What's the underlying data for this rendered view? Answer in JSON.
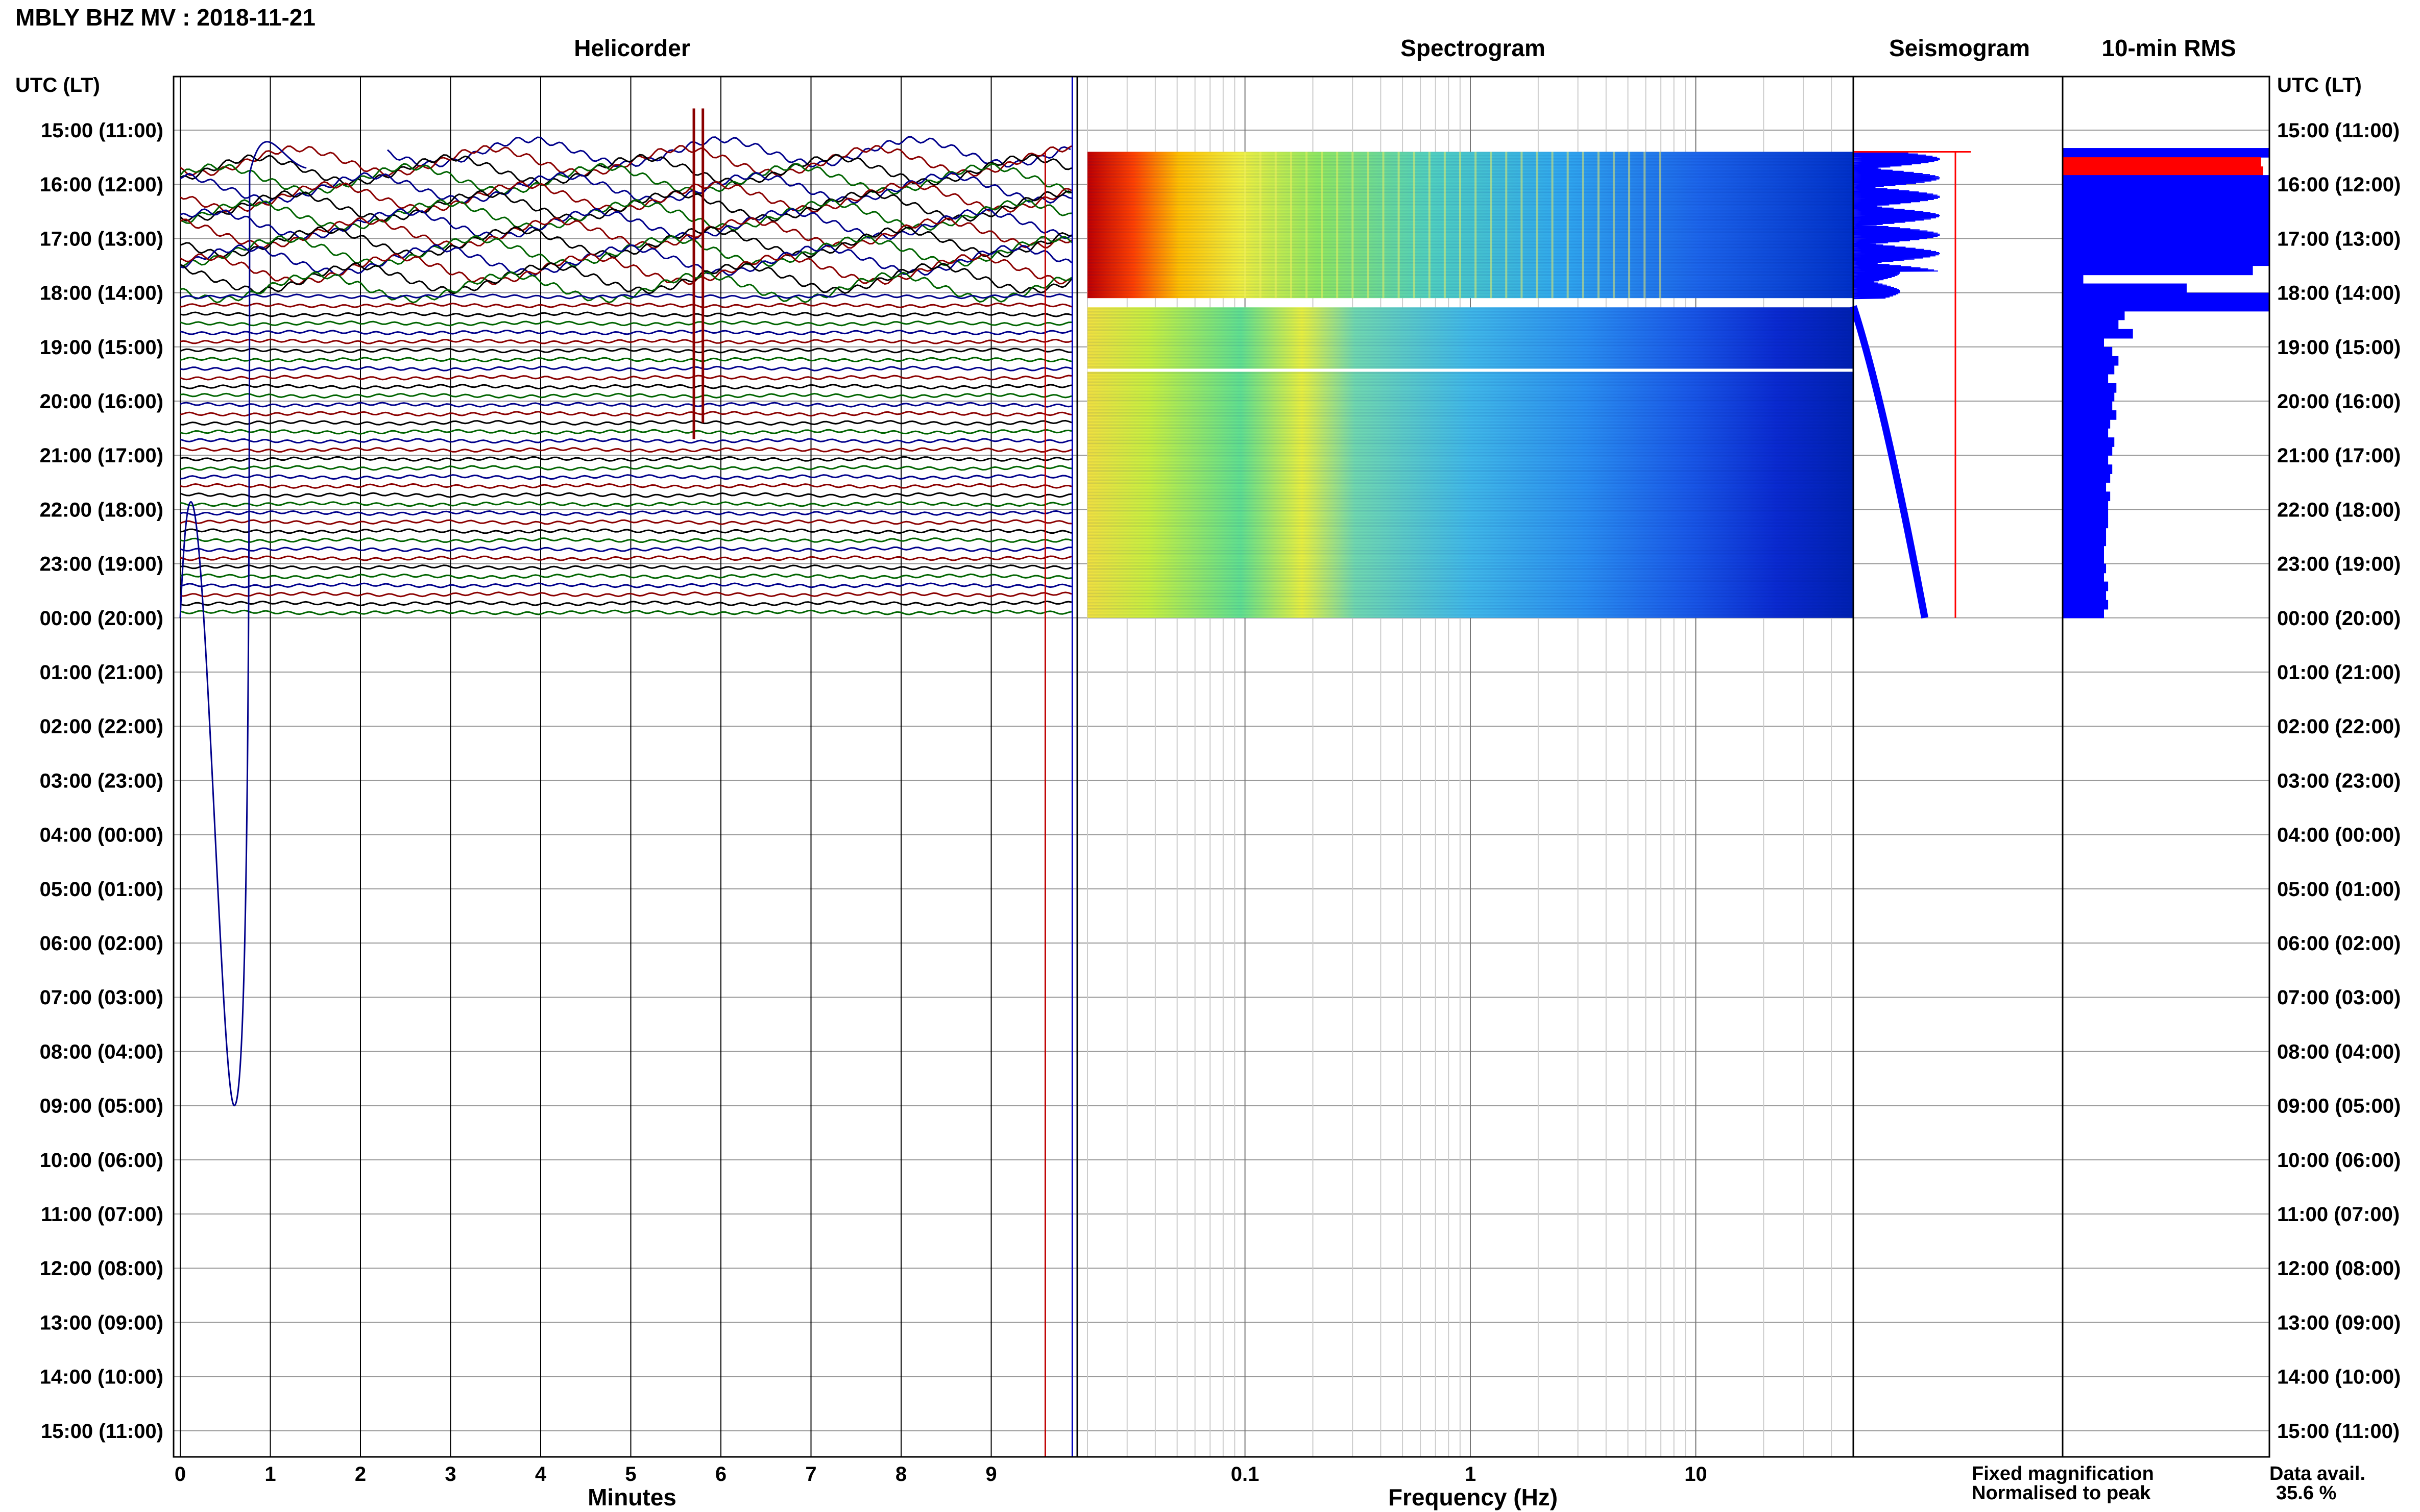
{
  "title": "MBLY BHZ MV : 2018-11-21",
  "panels": {
    "helicorder": "Helicorder",
    "spectrogram": "Spectrogram",
    "seismogram": "Seismogram",
    "rms": "10-min RMS"
  },
  "axis_header": "UTC (LT)",
  "footer": {
    "fixed_magnification": "Fixed magnification",
    "normalised_to_peak": "Normalised to peak",
    "data_avail_label": "Data avail.",
    "data_avail_value": "35.6 %"
  },
  "colors": {
    "trace_palette": [
      "#00008b",
      "#8b0000",
      "#000000",
      "#006400"
    ],
    "fixed_magnification": "#0000ff",
    "normalised_to_peak": "#ff0000",
    "rms_bar": "#0000ff",
    "rms_peak": "#ff0000"
  },
  "chart_data": [
    {
      "type": "line",
      "panel": "helicorder",
      "xlabel": "Minutes",
      "xticks": [
        0,
        1,
        2,
        3,
        4,
        5,
        6,
        7,
        8,
        9
      ],
      "xlim": [
        0,
        10
      ],
      "row_labels": [
        "15:00 (11:00)",
        "16:00 (12:00)",
        "17:00 (13:00)",
        "18:00 (14:00)",
        "19:00 (15:00)",
        "20:00 (16:00)",
        "21:00 (17:00)",
        "22:00 (18:00)",
        "23:00 (19:00)",
        "00:00 (20:00)",
        "01:00 (21:00)",
        "02:00 (22:00)",
        "03:00 (23:00)",
        "04:00 (00:00)",
        "05:00 (01:00)",
        "06:00 (02:00)",
        "07:00 (03:00)",
        "08:00 (04:00)",
        "09:00 (05:00)",
        "10:00 (06:00)",
        "11:00 (07:00)",
        "12:00 (08:00)",
        "13:00 (09:00)",
        "14:00 (10:00)",
        "15:00 (11:00)"
      ],
      "data_span_hours": [
        15.4,
        24.0
      ],
      "traces_per_hour": 6,
      "notable_events_minutes": [
        0.6,
        5.7,
        5.8,
        9.6
      ]
    },
    {
      "type": "heatmap",
      "panel": "spectrogram",
      "xlabel": "Frequency (Hz)",
      "xscale": "log",
      "xticks": [
        0.1,
        1,
        10
      ],
      "xtick_labels": [
        "0.1",
        "1",
        "10"
      ],
      "xlim": [
        0.02,
        50
      ],
      "data_span_hours": [
        15.4,
        24.0
      ],
      "colormap": "jet"
    },
    {
      "type": "line",
      "panel": "seismogram",
      "series": [
        "Fixed magnification",
        "Normalised to peak"
      ]
    },
    {
      "type": "bar",
      "panel": "rms",
      "orientation": "horizontal",
      "hours": [
        15.0,
        15.17,
        15.33,
        15.5,
        15.67,
        15.83,
        16.0,
        16.17,
        16.33,
        16.5,
        16.67,
        16.83,
        17.0,
        17.17,
        17.33,
        17.5,
        17.67,
        17.83,
        18.0,
        18.17,
        18.33,
        18.5,
        18.67,
        18.83,
        19.0,
        19.17,
        19.33,
        19.5,
        19.67,
        19.83,
        20.0,
        20.17,
        20.33,
        20.5,
        20.67,
        20.83,
        21.0,
        21.17,
        21.33,
        21.5,
        21.67,
        21.83,
        22.0,
        22.17,
        22.33,
        22.5,
        22.67,
        22.83,
        23.0,
        23.17,
        23.33,
        23.5,
        23.67,
        23.83
      ],
      "values": [
        0,
        0,
        1.0,
        0.96,
        0.97,
        1.0,
        1.0,
        1.0,
        1.0,
        1.0,
        1.0,
        1.0,
        1.0,
        1.0,
        1.0,
        0.92,
        0.1,
        0.6,
        1.0,
        1.0,
        0.3,
        0.27,
        0.34,
        0.2,
        0.24,
        0.27,
        0.25,
        0.22,
        0.26,
        0.25,
        0.24,
        0.26,
        0.23,
        0.22,
        0.25,
        0.24,
        0.22,
        0.24,
        0.23,
        0.21,
        0.23,
        0.22,
        0.22,
        0.22,
        0.21,
        0.21,
        0.2,
        0.2,
        0.21,
        0.2,
        0.22,
        0.21,
        0.22,
        0.2
      ],
      "peak_hours": [
        15.5,
        15.67
      ]
    }
  ]
}
